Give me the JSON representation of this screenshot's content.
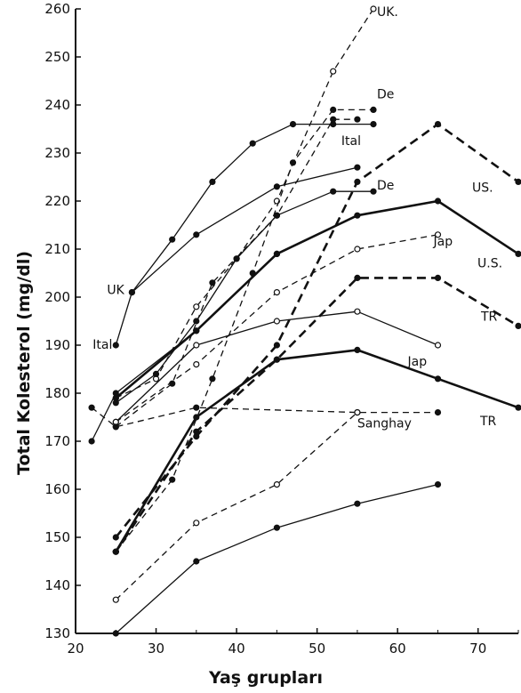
{
  "chart_data": {
    "type": "line",
    "title": "",
    "xlabel": "Yaş grupları",
    "ylabel": "Total Kolesterol (mg/dl)",
    "xlim": [
      20,
      75
    ],
    "ylim": [
      130,
      260
    ],
    "xticks": [
      20,
      30,
      40,
      50,
      60,
      70
    ],
    "yticks": [
      130,
      140,
      150,
      160,
      170,
      180,
      190,
      200,
      210,
      220,
      230,
      240,
      250,
      260
    ],
    "grid": false,
    "series": [
      {
        "name": "UK.",
        "style": "dashed",
        "marker": "open",
        "x": [
          25,
          30,
          35,
          40,
          45,
          52,
          57
        ],
        "y": [
          179,
          183,
          198,
          208,
          220,
          247,
          260
        ]
      },
      {
        "name": "UK",
        "style": "solid",
        "marker": "filled",
        "x": [
          27,
          32,
          37,
          42,
          47,
          52,
          57
        ],
        "y": [
          201,
          212,
          224,
          232,
          236,
          236,
          236
        ]
      },
      {
        "name": "De",
        "style": "dashed",
        "marker": "filled",
        "x": [
          25,
          32,
          37,
          42,
          47,
          52,
          57
        ],
        "y": [
          147,
          162,
          183,
          205,
          228,
          239,
          239
        ]
      },
      {
        "name": "Ital",
        "style": "dashed",
        "marker": "filled",
        "x": [
          25,
          32,
          37,
          45,
          52,
          55
        ],
        "y": [
          173,
          182,
          203,
          217,
          237,
          237
        ]
      },
      {
        "name": "De",
        "style": "solid",
        "marker": "filled",
        "x": [
          25,
          30,
          35,
          40,
          45,
          52,
          57
        ],
        "y": [
          178,
          184,
          195,
          208,
          217,
          222,
          222
        ]
      },
      {
        "name": "Ital",
        "style": "solid",
        "marker": "filled",
        "x": [
          25,
          27,
          35,
          45,
          55
        ],
        "y": [
          190,
          201,
          213,
          223,
          227
        ]
      },
      {
        "name": "US.",
        "style": "dashed-bold",
        "marker": "filled",
        "x": [
          25,
          35,
          45,
          55,
          65,
          75
        ],
        "y": [
          150,
          171,
          190,
          224,
          236,
          224
        ]
      },
      {
        "name": "U.S.",
        "style": "solid-bold",
        "marker": "filled",
        "x": [
          25,
          35,
          45,
          55,
          65,
          75
        ],
        "y": [
          179,
          193,
          209,
          217,
          220,
          209
        ]
      },
      {
        "name": "Jap",
        "style": "dashed",
        "marker": "open",
        "x": [
          25,
          35,
          45,
          55,
          65
        ],
        "y": [
          174,
          186,
          201,
          210,
          213
        ]
      },
      {
        "name": "TR",
        "style": "dashed-bold",
        "marker": "filled",
        "x": [
          25,
          35,
          45,
          55,
          65,
          75
        ],
        "y": [
          147,
          172,
          187,
          204,
          204,
          194
        ]
      },
      {
        "name": "Jap",
        "style": "solid",
        "marker": "open",
        "x": [
          25,
          35,
          45,
          55,
          65
        ],
        "y": [
          174,
          190,
          195,
          197,
          190
        ]
      },
      {
        "name": "TR",
        "style": "solid-bold",
        "marker": "filled",
        "x": [
          25,
          35,
          45,
          55,
          65,
          75
        ],
        "y": [
          147,
          175,
          187,
          189,
          183,
          177
        ]
      },
      {
        "name": "Sanghay",
        "style": "dashed",
        "marker": "filled",
        "x": [
          22,
          25,
          35,
          55,
          65
        ],
        "y": [
          177,
          173,
          177,
          176,
          176
        ]
      },
      {
        "name": "",
        "style": "solid",
        "marker": "filled",
        "x": [
          22,
          25,
          35,
          45
        ],
        "y": [
          170,
          180,
          193,
          209
        ]
      },
      {
        "name": "",
        "style": "dashed",
        "marker": "open",
        "x": [
          25,
          35,
          45,
          55
        ],
        "y": [
          137,
          153,
          161,
          176
        ]
      },
      {
        "name": "",
        "style": "solid",
        "marker": "filled",
        "x": [
          25,
          35,
          45,
          55,
          65
        ],
        "y": [
          130,
          145,
          152,
          157,
          161
        ]
      }
    ]
  }
}
